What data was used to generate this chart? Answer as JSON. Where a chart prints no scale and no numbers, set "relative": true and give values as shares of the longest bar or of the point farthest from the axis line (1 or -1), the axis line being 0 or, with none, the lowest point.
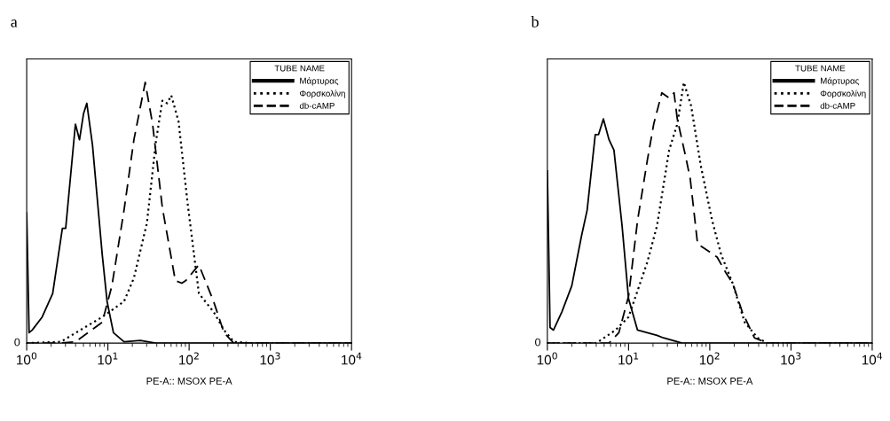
{
  "chart_data": [
    {
      "type": "line",
      "title": "a",
      "xlabel": "PE-A:: MSOX PE-A",
      "relative": true,
      "log": "x",
      "xlim": [
        1,
        10000
      ],
      "xticks": [
        {
          "value": 1,
          "label": "10$^{0}$"
        },
        {
          "value": 10,
          "label": "10$^{1}$"
        },
        {
          "value": 100,
          "label": "10$^{2}$"
        },
        {
          "value": 1000,
          "label": "10$^{3}$"
        },
        {
          "value": 10000,
          "label": "10$^{4}$"
        }
      ],
      "legend": "top right",
      "legend_title": "TUBE NAME",
      "grid": false,
      "annotations": [
        "0"
      ],
      "series": [
        {
          "name": "Μάρτυρας",
          "color": "#000000",
          "line_style": "solid",
          "x": [
            1,
            1.07,
            1.17,
            1.55,
            2.09,
            2.75,
            3.02,
            3.98,
            4.47,
            5.01,
            5.5,
            6.46,
            8.51,
            9.77,
            11.7,
            15.8,
            25.1,
            38.9,
            10000
          ],
          "values": [
            0.5,
            0.04,
            0.05,
            0.1,
            0.19,
            0.44,
            0.44,
            0.84,
            0.78,
            0.88,
            0.92,
            0.76,
            0.34,
            0.16,
            0.04,
            0.005,
            0.01,
            0,
            0
          ]
        },
        {
          "name": "Φορσκολίνη",
          "color": "#000000",
          "line_style": "dotted",
          "x": [
            1,
            2.63,
            4.57,
            8.51,
            15.8,
            20.9,
            30.2,
            38.9,
            46.8,
            53.7,
            60.3,
            74.1,
            95.5,
            132,
            200,
            269,
            355,
            589,
            10000
          ],
          "values": [
            0,
            0.005,
            0.05,
            0.1,
            0.16,
            0.25,
            0.46,
            0.77,
            0.93,
            0.92,
            0.95,
            0.85,
            0.54,
            0.19,
            0.12,
            0.05,
            0.005,
            0,
            0
          ]
        },
        {
          "name": "db-cAMP",
          "color": "#000000",
          "line_style": "dashed",
          "x": [
            1,
            2.63,
            3.98,
            8.51,
            11.2,
            15.8,
            20.9,
            28.8,
            35.5,
            46.8,
            67.6,
            81.3,
            91.2,
            132,
            200,
            269,
            355,
            10000
          ],
          "values": [
            0,
            0,
            0.005,
            0.08,
            0.22,
            0.51,
            0.78,
            1.0,
            0.84,
            0.52,
            0.24,
            0.23,
            0.24,
            0.3,
            0.16,
            0.04,
            0,
            0
          ]
        }
      ]
    },
    {
      "type": "line",
      "title": "b",
      "xlabel": "PE-A:: MSOX PE-A",
      "relative": true,
      "log": "x",
      "xlim": [
        1,
        10000
      ],
      "xticks": [
        {
          "value": 1,
          "label": "10$^{0}$"
        },
        {
          "value": 10,
          "label": "10$^{1}$"
        },
        {
          "value": 100,
          "label": "10$^{2}$"
        },
        {
          "value": 1000,
          "label": "10$^{3}$"
        },
        {
          "value": 10000,
          "label": "10$^{4}$"
        }
      ],
      "legend": "top right",
      "legend_title": "TUBE NAME",
      "grid": false,
      "annotations": [
        "0"
      ],
      "series": [
        {
          "name": "Μάρτυρας",
          "color": "#000000",
          "line_style": "solid",
          "x": [
            1,
            1.08,
            1.19,
            1.51,
            2.0,
            2.63,
            3.09,
            3.89,
            4.27,
            4.9,
            5.75,
            6.61,
            8.32,
            10,
            12.9,
            22.4,
            26.9,
            45.7,
            10000
          ],
          "values": [
            0.66,
            0.06,
            0.05,
            0.12,
            0.22,
            0.41,
            0.51,
            0.8,
            0.8,
            0.86,
            0.78,
            0.74,
            0.45,
            0.17,
            0.05,
            0.03,
            0.02,
            0,
            0
          ]
        },
        {
          "name": "Φορσκολίνη",
          "color": "#000000",
          "line_style": "dotted",
          "x": [
            1,
            3.89,
            4.47,
            6.92,
            10,
            17.0,
            22.4,
            31.6,
            39.8,
            47.9,
            58.9,
            77.6,
            107,
            138,
            191,
            269,
            389,
            513,
            10000
          ],
          "values": [
            0,
            0,
            0.01,
            0.05,
            0.1,
            0.31,
            0.45,
            0.74,
            0.84,
            1.0,
            0.91,
            0.68,
            0.47,
            0.34,
            0.23,
            0.08,
            0.02,
            0,
            0
          ]
        },
        {
          "name": "db-cAMP",
          "color": "#000000",
          "line_style": "dashed",
          "x": [
            1,
            5.75,
            7.59,
            10,
            12.9,
            17.0,
            20.4,
            25.7,
            31.6,
            36.3,
            39.8,
            50.1,
            57.5,
            70.8,
            89.1,
            123,
            158,
            191,
            251,
            355,
            513,
            10000
          ],
          "values": [
            0,
            0,
            0.04,
            0.18,
            0.47,
            0.7,
            0.84,
            0.96,
            0.94,
            0.96,
            0.86,
            0.72,
            0.63,
            0.38,
            0.36,
            0.33,
            0.27,
            0.23,
            0.12,
            0.02,
            0,
            0
          ]
        }
      ]
    }
  ]
}
